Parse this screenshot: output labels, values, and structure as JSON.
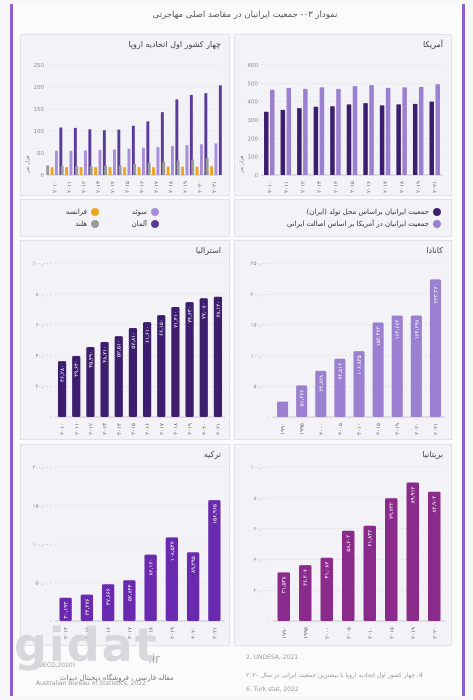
{
  "figure": {
    "title": "نمودار ۰۳- جمعیت ایرانیان در مقاصد اصلی مهاجرتی"
  },
  "panels": {
    "usa": {
      "title": "آمریکا"
    },
    "europe": {
      "title": "چهار کشور اول اتحادیه اروپا"
    },
    "canada": {
      "title": "کانادا"
    },
    "australia": {
      "title": "استرالیا"
    },
    "uk": {
      "title": "بریتانیا"
    },
    "turkey": {
      "title": "ترکیه"
    }
  },
  "legends": {
    "usa": [
      "جمعیت ایرانیان براساس محل تولد (ایران)",
      "جمعیت ایرانیان در آمریکا بر اساس اصالت ایرانی"
    ],
    "europe": [
      "سوئد",
      "آلمان",
      "فرانسه",
      "هلند"
    ]
  },
  "colors": {
    "dark": "#3d1d6e",
    "light": "#9b7fd0",
    "orange": "#f0a31c",
    "gray": "#9a9a9a",
    "frame": "#8d5fd3"
  },
  "chart_data": [
    {
      "id": "usa",
      "type": "bar",
      "ylim": [
        0,
        600
      ],
      "ticks": [
        0,
        100,
        200,
        300,
        400,
        500,
        600
      ],
      "unit_label": "هزار نفر",
      "categories": [
        "۲۰۱۰",
        "۲۰۱۱",
        "۲۰۱۲",
        "۲۰۱۳",
        "۲۰۱۴",
        "۲۰۱۵",
        "۲۰۱۶",
        "۲۰۱۷",
        "۲۰۱۸",
        "۲۰۱۹",
        "۲۰۲۱"
      ],
      "series": [
        {
          "name": "جمعیت ایرانیان براساس محل تولد (ایران)",
          "color": "#3d1d6e",
          "values": [
            345,
            355,
            365,
            372,
            375,
            385,
            392,
            380,
            385,
            388,
            400
          ]
        },
        {
          "name": "جمعیت ایرانیان در آمریکا بر اساس اصالت ایرانی",
          "color": "#9b7fd0",
          "values": [
            465,
            475,
            470,
            478,
            470,
            485,
            490,
            475,
            478,
            480,
            495
          ]
        }
      ]
    },
    {
      "id": "europe",
      "type": "bar",
      "ylim": [
        0,
        250
      ],
      "ticks": [
        0,
        50,
        100,
        150,
        200,
        250
      ],
      "unit_label": "هزار نفر",
      "categories": [
        "۲۰۱۰",
        "۲۰۱۱",
        "۲۰۱۲",
        "۲۰۱۳",
        "۲۰۱۴",
        "۲۰۱۵",
        "۲۰۱۶",
        "۲۰۱۷",
        "۲۰۱۸",
        "۲۰۱۹",
        "۲۰۲۰",
        "۲۰۲۱"
      ],
      "series": [
        {
          "name": "هلند",
          "color": "#9a9a9a",
          "values": [
            22,
            21,
            20,
            20,
            21,
            22,
            25,
            27,
            30,
            33,
            35,
            38
          ]
        },
        {
          "name": "فرانسه",
          "color": "#f0a31c",
          "values": [
            18,
            18,
            18,
            18,
            18,
            18,
            18,
            18,
            19,
            19,
            19,
            20
          ]
        },
        {
          "name": "سوئد",
          "color": "#a88ddd",
          "values": [
            55,
            55,
            56,
            57,
            58,
            60,
            62,
            64,
            66,
            68,
            70,
            72
          ]
        },
        {
          "name": "آلمان",
          "color": "#5a3a9a",
          "values": [
            108,
            107,
            104,
            102,
            103,
            112,
            122,
            143,
            172,
            182,
            186,
            204
          ]
        }
      ]
    },
    {
      "id": "canada",
      "type": "bar",
      "ylim": [
        0,
        250000
      ],
      "ticks": [
        0,
        50000,
        100000,
        150000,
        200000,
        250000
      ],
      "tick_labels": [
        "۰",
        "۵۰,۰۰۰",
        "۱۰۰,۰۰۰",
        "۱۵۰,۰۰۰",
        "۲۰۰,۰۰۰",
        "۲۵۰,۰۰۰"
      ],
      "categories": [
        "۱۹۹۰",
        "۱۹۹۵",
        "۲۰۰۰",
        "۲۰۰۵",
        "۲۰۱۰",
        "۲۰۱۵",
        "۲۰۱۹",
        "۲۰۲۰",
        "۲۰۲۱"
      ],
      "series": [
        {
          "name": "",
          "color": "#9b7fd0",
          "values": [
            25000,
            51266,
            74838,
            94512,
            106845,
            153473,
            164663,
            164698,
            223360
          ]
        }
      ],
      "value_labels": [
        "",
        "۵۱,۲۶۶",
        "۷۴,۸۳۸",
        "۹۴,۵۱۲",
        "۱۰۶,۸۴۵",
        "۱۵۳,۴۷۳",
        "۱۶۴,۶۶۳",
        "۱۶۴,۶۹۸",
        "۲۲۳,۳۶۰"
      ]
    },
    {
      "id": "australia",
      "type": "bar",
      "ylim": [
        0,
        100000
      ],
      "ticks": [
        0,
        20000,
        40000,
        60000,
        80000,
        100000
      ],
      "tick_labels": [
        "۰",
        "۲۰,۰۰۰",
        "۴۰,۰۰۰",
        "۶۰,۰۰۰",
        "۸۰,۰۰۰",
        "۱۰۰,۰۰۰"
      ],
      "categories": [
        "۲۰۱۰",
        "۲۰۱۱",
        "۲۰۱۲",
        "۲۰۱۳",
        "۲۰۱۴",
        "۲۰۱۵",
        "۲۰۱۶",
        "۲۰۱۷",
        "۲۰۱۸",
        "۲۰۱۹",
        "۲۰۲۰",
        "۲۰۲۱"
      ],
      "series": [
        {
          "name": "",
          "color": "#3d1d6e",
          "values": [
            36280,
            39640,
            45490,
            48710,
            52510,
            57810,
            61610,
            66150,
            71410,
            74630,
            77080,
            78120
          ]
        }
      ],
      "value_labels": [
        "۳۶,۲۸۰",
        "۳۹,۶۴۰",
        "۴۵,۴۹۰",
        "۴۸,۷۱۰",
        "۵۲,۵۱۰",
        "۵۷,۸۱۰",
        "۶۱,۶۱۰",
        "۶۶,۱۵۰",
        "۷۱,۴۱۰",
        "۷۴,۶۳۰",
        "۷۷,۰۸۰",
        "۷۸,۱۲۰"
      ]
    },
    {
      "id": "uk",
      "type": "bar",
      "ylim": [
        0,
        100000
      ],
      "ticks": [
        0,
        20000,
        40000,
        60000,
        80000,
        100000
      ],
      "tick_labels": [
        "۰",
        "۲۰,۰۰۰",
        "۴۰,۰۰۰",
        "۶۰,۰۰۰",
        "۸۰,۰۰۰",
        "۱۰۰,۰۰۰"
      ],
      "categories": [
        "۱۹۹۰",
        "۱۹۹۵",
        "۲۰۰۰",
        "۲۰۰۵",
        "۲۰۱۰",
        "۲۰۱۵",
        "۲۰۱۹",
        "۲۰۲۰"
      ],
      "series": [
        {
          "name": "",
          "color": "#8a2a8a",
          "values": [
            31538,
            36307,
            41087,
            58603,
            61832,
            79732,
            89912,
            83903
          ]
        }
      ],
      "value_labels": [
        "۳۱,۵۳۸",
        "۳۶,۳۰۷",
        "۴۱,۰۸۷",
        "۵۸,۶۰۳",
        "۶۱,۸۳۲",
        "۷۹,۷۳۲",
        "۸۹,۹۱۲",
        "۸۳,۹۰۳"
      ]
    },
    {
      "id": "turkey",
      "type": "bar",
      "ylim": [
        0,
        200000
      ],
      "ticks": [
        0,
        50000,
        100000,
        150000,
        200000
      ],
      "tick_labels": [
        "۰",
        "۵۰,۰۰۰",
        "۱۰۰,۰۰۰",
        "۱۵۰,۰۰۰",
        "۲۰۰,۰۰۰"
      ],
      "categories": [
        "۲۰۱۴",
        "۲۰۱۵",
        "۲۰۱۶",
        "۲۰۱۷",
        "۲۰۱۸",
        "۲۰۱۹",
        "۲۰۲۰",
        "۲۰۲۱"
      ],
      "series": [
        {
          "name": "",
          "color": "#6a2ab0",
          "values": [
            30193,
            34276,
            47666,
            52844,
            86160,
            108547,
            89295,
            156965
          ]
        }
      ],
      "value_labels": [
        "۳۰,۱۹۳",
        "۳۴,۲۷۶",
        "۴۷,۶۶۶",
        "۵۲,۸۴۴",
        "۸۶,۱۶۰",
        "۱۰۸,۵۴۷",
        "۸۹,۲۹۵",
        "۱۵۶,۹۶۵"
      ]
    }
  ],
  "footnotes": [
    "2. UNDESA, 2021",
    "(DECD,2020)",
    "4. چهار کشور اول اتحادیه اروپا با بیشترین جمعیت ایرانی در سال ۲۰۲۰",
    "Australian Bureau of Statistics, 2022",
    "6. Turk stat, 2022"
  ],
  "watermark": {
    "logo": "gidat",
    "tld": ".ir",
    "caption": "مقاله فارسی ، فروشگاه دیجیتال دیدات"
  }
}
